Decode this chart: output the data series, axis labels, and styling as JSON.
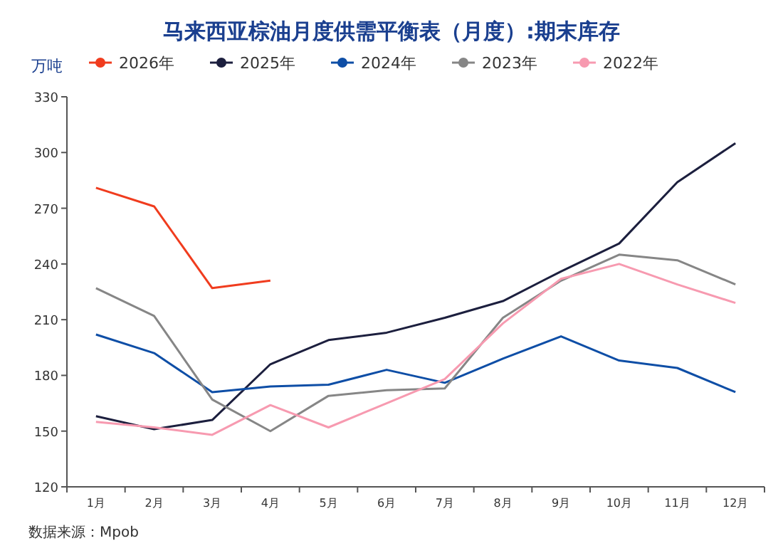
{
  "chart_data": {
    "type": "line",
    "title": "马来西亚棕油月度供需平衡表（月度）:期末库存",
    "ylabel": "万吨",
    "legend": "top",
    "marker": "none",
    "line_style": "solid",
    "categories": [
      "1月",
      "2月",
      "3月",
      "4月",
      "5月",
      "6月",
      "7月",
      "8月",
      "9月",
      "10月",
      "11月",
      "12月"
    ],
    "ylim": [
      120,
      330
    ],
    "yticks": [
      120,
      150,
      180,
      210,
      240,
      270,
      300,
      330
    ],
    "series": [
      {
        "name": "2026年",
        "color": "#f03c1e",
        "values": [
          281,
          271,
          227,
          231,
          null,
          null,
          null,
          null,
          null,
          null,
          null,
          null
        ]
      },
      {
        "name": "2025年",
        "color": "#1c1f3e",
        "values": [
          158,
          151,
          156,
          186,
          199,
          203,
          211,
          220,
          236,
          251,
          284,
          305
        ]
      },
      {
        "name": "2024年",
        "color": "#0e4ea6",
        "values": [
          202,
          192,
          171,
          174,
          175,
          183,
          176,
          189,
          201,
          188,
          184,
          171
        ]
      },
      {
        "name": "2023年",
        "color": "#868686",
        "values": [
          227,
          212,
          167,
          150,
          169,
          172,
          173,
          211,
          231,
          245,
          242,
          229
        ]
      },
      {
        "name": "2022年",
        "color": "#f79ab0",
        "values": [
          155,
          152,
          148,
          164,
          152,
          165,
          178,
          208,
          232,
          240,
          229,
          219
        ]
      }
    ],
    "annotations": [
      "数据来源：Mpob"
    ]
  }
}
